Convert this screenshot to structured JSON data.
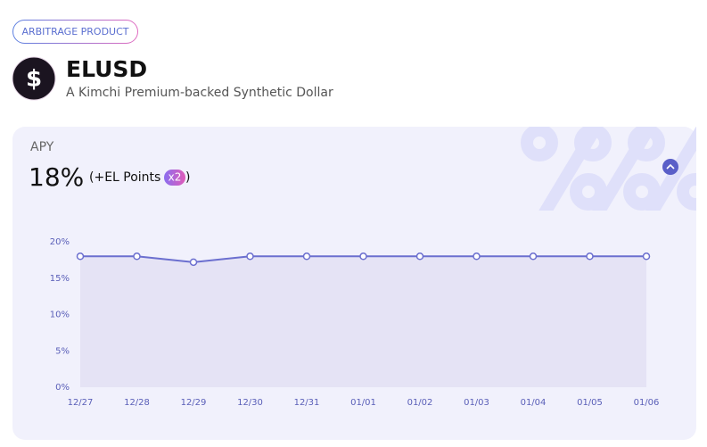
{
  "badge": "ARBITRAGE PRODUCT",
  "header": {
    "icon": "$",
    "title": "ELUSD",
    "subtitle": "A Kimchi Premium-backed Synthetic Dollar"
  },
  "apy": {
    "label": "APY",
    "value": "18%",
    "bonus_prefix": "(+EL Points",
    "multiplier": "x2",
    "bonus_suffix": ")"
  },
  "chart_data": {
    "type": "line",
    "categories": [
      "12/27",
      "12/28",
      "12/29",
      "12/30",
      "12/31",
      "01/01",
      "01/02",
      "01/03",
      "01/04",
      "01/05",
      "01/06"
    ],
    "series": [
      {
        "name": "APY",
        "color": "#6b6fcf",
        "values": [
          18,
          18,
          17.2,
          18,
          18,
          18,
          18,
          18,
          18,
          18,
          18
        ]
      }
    ],
    "ylim": [
      0,
      20
    ],
    "yticks": [
      {
        "value": 0,
        "label": "0%"
      },
      {
        "value": 5,
        "label": "5%"
      },
      {
        "value": 10,
        "label": "10%"
      },
      {
        "value": 15,
        "label": "15%"
      },
      {
        "value": 20,
        "label": "20%"
      }
    ],
    "area": true
  }
}
